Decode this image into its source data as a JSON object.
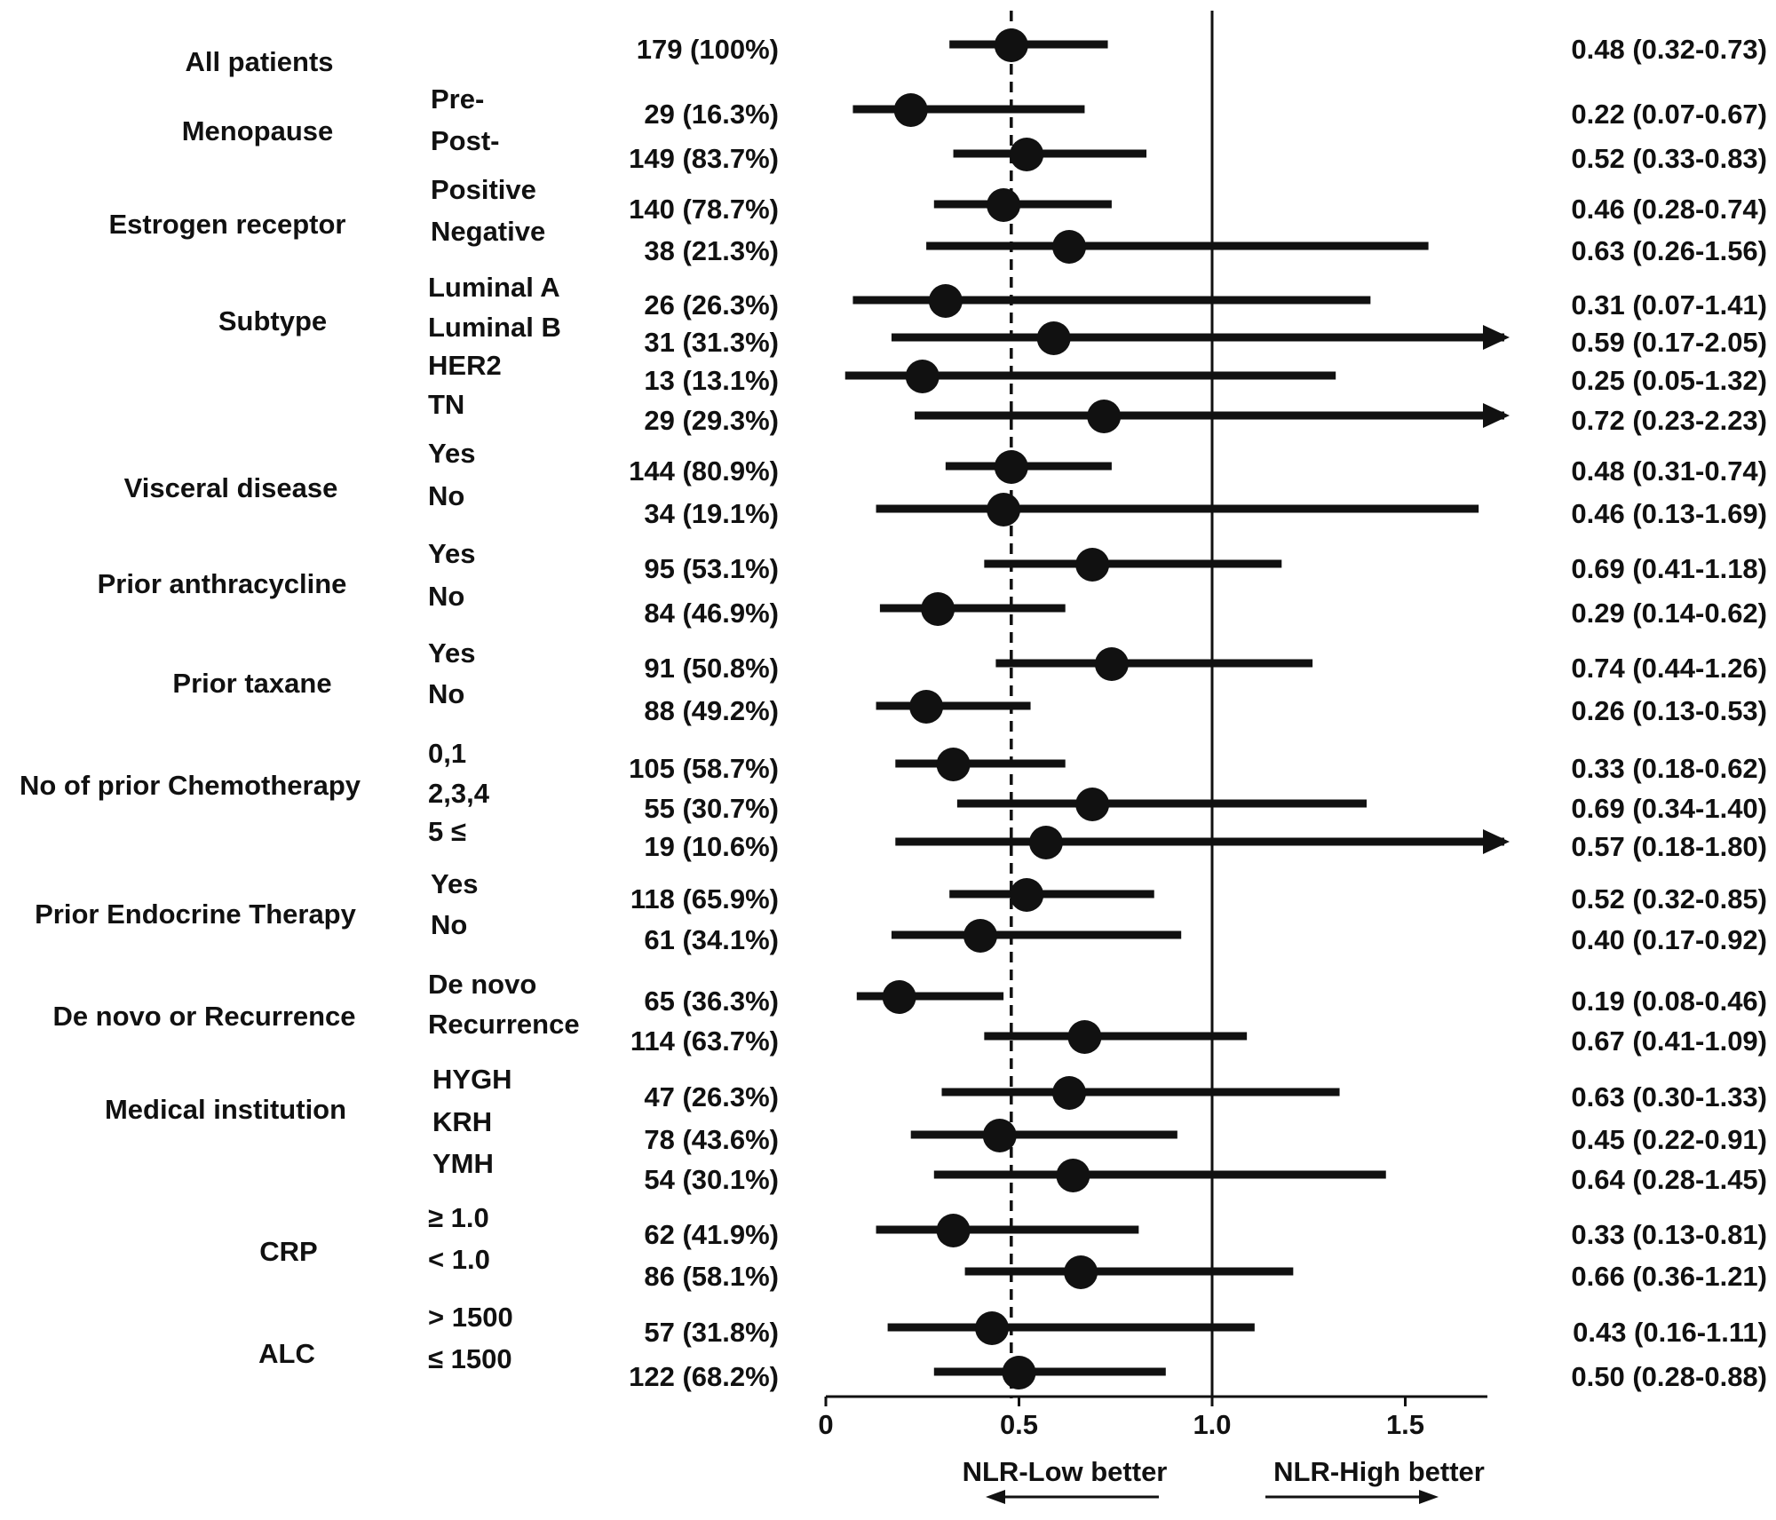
{
  "chart_data": {
    "type": "forest",
    "xlim": [
      0,
      1.7
    ],
    "x_ticks": [
      {
        "value": 0,
        "label": "0"
      },
      {
        "value": 0.5,
        "label": "0.5"
      },
      {
        "value": 1.0,
        "label": "1.0"
      },
      {
        "value": 1.5,
        "label": "1.5"
      }
    ],
    "reference_line": 1.0,
    "overall_line": 0.48,
    "direction_labels": {
      "left": "NLR-Low better",
      "right": "NLR-High better"
    },
    "groups": [
      {
        "label": "All patients",
        "rows": [
          {
            "sub": "",
            "n": "179 (100%)",
            "hr": 0.48,
            "lo": 0.32,
            "hi": 0.73,
            "ci": "0.48 (0.32-0.73)"
          }
        ]
      },
      {
        "label": "Menopause",
        "rows": [
          {
            "sub": "Pre-",
            "n": "29 (16.3%)",
            "hr": 0.22,
            "lo": 0.07,
            "hi": 0.67,
            "ci": "0.22 (0.07-0.67)"
          },
          {
            "sub": "Post-",
            "n": "149 (83.7%)",
            "hr": 0.52,
            "lo": 0.33,
            "hi": 0.83,
            "ci": "0.52 (0.33-0.83)"
          }
        ]
      },
      {
        "label": "Estrogen  receptor",
        "rows": [
          {
            "sub": "Positive",
            "n": "140 (78.7%)",
            "hr": 0.46,
            "lo": 0.28,
            "hi": 0.74,
            "ci": "0.46 (0.28-0.74)"
          },
          {
            "sub": "Negative",
            "n": "38 (21.3%)",
            "hr": 0.63,
            "lo": 0.26,
            "hi": 1.56,
            "ci": "0.63 (0.26-1.56)"
          }
        ]
      },
      {
        "label": "Subtype",
        "rows": [
          {
            "sub": "Luminal A",
            "n": "26 (26.3%)",
            "hr": 0.31,
            "lo": 0.07,
            "hi": 1.41,
            "ci": "0.31 (0.07-1.41)"
          },
          {
            "sub": "Luminal B",
            "n": "31 (31.3%)",
            "hr": 0.59,
            "lo": 0.17,
            "hi": 2.05,
            "ci": "0.59 (0.17-2.05)"
          },
          {
            "sub": "HER2",
            "n": "13 (13.1%)",
            "hr": 0.25,
            "lo": 0.05,
            "hi": 1.32,
            "ci": "0.25 (0.05-1.32)"
          },
          {
            "sub": "TN",
            "n": "29 (29.3%)",
            "hr": 0.72,
            "lo": 0.23,
            "hi": 2.23,
            "ci": "0.72 (0.23-2.23)"
          }
        ]
      },
      {
        "label": "Visceral disease",
        "rows": [
          {
            "sub": "Yes",
            "n": "144 (80.9%)",
            "hr": 0.48,
            "lo": 0.31,
            "hi": 0.74,
            "ci": "0.48 (0.31-0.74)"
          },
          {
            "sub": "No",
            "n": "34 (19.1%)",
            "hr": 0.46,
            "lo": 0.13,
            "hi": 1.69,
            "ci": "0.46 (0.13-1.69)"
          }
        ]
      },
      {
        "label": "Prior anthracycline",
        "rows": [
          {
            "sub": "Yes",
            "n": "95 (53.1%)",
            "hr": 0.69,
            "lo": 0.41,
            "hi": 1.18,
            "ci": "0.69 (0.41-1.18)"
          },
          {
            "sub": "No",
            "n": "84 (46.9%)",
            "hr": 0.29,
            "lo": 0.14,
            "hi": 0.62,
            "ci": "0.29 (0.14-0.62)"
          }
        ]
      },
      {
        "label": "Prior taxane",
        "rows": [
          {
            "sub": "Yes",
            "n": "91 (50.8%)",
            "hr": 0.74,
            "lo": 0.44,
            "hi": 1.26,
            "ci": "0.74 (0.44-1.26)"
          },
          {
            "sub": "No",
            "n": "88 (49.2%)",
            "hr": 0.26,
            "lo": 0.13,
            "hi": 0.53,
            "ci": "0.26 (0.13-0.53)"
          }
        ]
      },
      {
        "label": "No of prior Chemotherapy",
        "rows": [
          {
            "sub": "0,1",
            "n": "105 (58.7%)",
            "hr": 0.33,
            "lo": 0.18,
            "hi": 0.62,
            "ci": "0.33 (0.18-0.62)"
          },
          {
            "sub": "2,3,4",
            "n": "55 (30.7%)",
            "hr": 0.69,
            "lo": 0.34,
            "hi": 1.4,
            "ci": "0.69 (0.34-1.40)"
          },
          {
            "sub": "5 ≤",
            "n": "19 (10.6%)",
            "hr": 0.57,
            "lo": 0.18,
            "hi": 1.8,
            "ci": "0.57 (0.18-1.80)"
          }
        ]
      },
      {
        "label": "Prior Endocrine Therapy",
        "rows": [
          {
            "sub": "Yes",
            "n": "118 (65.9%)",
            "hr": 0.52,
            "lo": 0.32,
            "hi": 0.85,
            "ci": "0.52 (0.32-0.85)"
          },
          {
            "sub": "No",
            "n": "61 (34.1%)",
            "hr": 0.4,
            "lo": 0.17,
            "hi": 0.92,
            "ci": "0.40 (0.17-0.92)"
          }
        ]
      },
      {
        "label": "De novo or Recurrence",
        "rows": [
          {
            "sub": "De novo",
            "n": "65 (36.3%)",
            "hr": 0.19,
            "lo": 0.08,
            "hi": 0.46,
            "ci": "0.19 (0.08-0.46)"
          },
          {
            "sub": "Recurrence",
            "n": "114 (63.7%)",
            "hr": 0.67,
            "lo": 0.41,
            "hi": 1.09,
            "ci": "0.67 (0.41-1.09)"
          }
        ]
      },
      {
        "label": "Medical institution",
        "rows": [
          {
            "sub": "HYGH",
            "n": "47 (26.3%)",
            "hr": 0.63,
            "lo": 0.3,
            "hi": 1.33,
            "ci": "0.63 (0.30-1.33)"
          },
          {
            "sub": "KRH",
            "n": "78 (43.6%)",
            "hr": 0.45,
            "lo": 0.22,
            "hi": 0.91,
            "ci": "0.45 (0.22-0.91)"
          },
          {
            "sub": "YMH",
            "n": "54 (30.1%)",
            "hr": 0.64,
            "lo": 0.28,
            "hi": 1.45,
            "ci": "0.64 (0.28-1.45)"
          }
        ]
      },
      {
        "label": "CRP",
        "rows": [
          {
            "sub": "≥ 1.0",
            "n": "62 (41.9%)",
            "hr": 0.33,
            "lo": 0.13,
            "hi": 0.81,
            "ci": "0.33 (0.13-0.81)"
          },
          {
            "sub": "< 1.0",
            "n": "86 (58.1%)",
            "hr": 0.66,
            "lo": 0.36,
            "hi": 1.21,
            "ci": "0.66 (0.36-1.21)"
          }
        ]
      },
      {
        "label": "ALC",
        "rows": [
          {
            "sub": "> 1500",
            "n": "57 (31.8%)",
            "hr": 0.43,
            "lo": 0.16,
            "hi": 1.11,
            "ci": "0.43 (0.16-1.11)"
          },
          {
            "sub": "≤ 1500",
            "n": "122 (68.2%)",
            "hr": 0.5,
            "lo": 0.28,
            "hi": 0.88,
            "ci": "0.50 (0.28-0.88)"
          }
        ]
      }
    ]
  }
}
